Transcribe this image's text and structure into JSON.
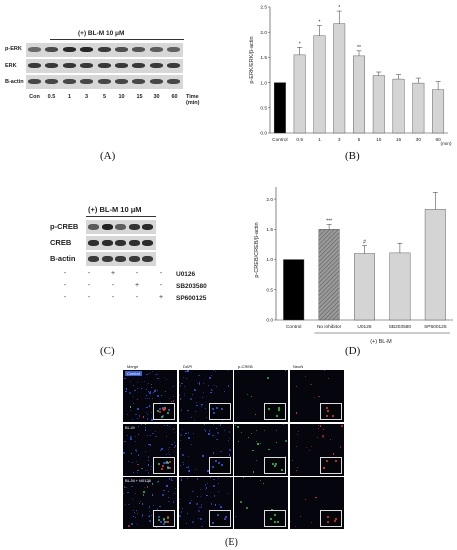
{
  "panels": {
    "A": "(A)",
    "B": "(B)",
    "C": "(C)",
    "D": "(D)",
    "E": "(E)"
  },
  "blot_a": {
    "treatment": "(+) BL-M 10 μM",
    "rows": [
      "p-ERK",
      "ERK",
      "B-actin"
    ],
    "lanes": [
      "Con",
      "0.5",
      "1",
      "3",
      "5",
      "10",
      "15",
      "30",
      "60"
    ],
    "time_label": "Time (min)"
  },
  "blot_c": {
    "treatment": "(+) BL-M 10 μM",
    "rows": [
      "p-CREB",
      "CREB",
      "B-actin"
    ],
    "treatments": [
      {
        "name": "U0126",
        "signs": [
          "-",
          "-",
          "+",
          "-",
          "-"
        ]
      },
      {
        "name": "SB203580",
        "signs": [
          "-",
          "-",
          "-",
          "+",
          "-"
        ]
      },
      {
        "name": "SP600125",
        "signs": [
          "-",
          "-",
          "-",
          "-",
          "+"
        ]
      }
    ]
  },
  "chart_data": [
    {
      "type": "bar",
      "categories": [
        "Control",
        "0.5",
        "1",
        "3",
        "5",
        "10",
        "15",
        "30",
        "60"
      ],
      "values": [
        1.0,
        1.55,
        1.93,
        2.17,
        1.53,
        1.14,
        1.07,
        0.99,
        0.86
      ],
      "errors": [
        0.0,
        0.15,
        0.2,
        0.25,
        0.1,
        0.07,
        0.09,
        0.1,
        0.16
      ],
      "significance": [
        "",
        "*",
        "*",
        "*",
        "**",
        "",
        "",
        "",
        ""
      ],
      "colors": [
        "#000000",
        "#d4d4d4",
        "#d4d4d4",
        "#d4d4d4",
        "#d4d4d4",
        "#d4d4d4",
        "#d4d4d4",
        "#d4d4d4",
        "#d4d4d4"
      ],
      "ylabel": "p-ERK/ERK/β-actin",
      "xunit": "(min)",
      "ylim": [
        0,
        2.5
      ],
      "yticks": [
        "0.0",
        "0.5",
        "1.0",
        "1.5",
        "2.0",
        "2.5"
      ]
    },
    {
      "type": "bar",
      "categories": [
        "Control",
        "No inhibitor",
        "U0126",
        "SB203580",
        "SP600125"
      ],
      "values": [
        1.0,
        1.5,
        1.1,
        1.11,
        1.83
      ],
      "errors": [
        0.0,
        0.08,
        0.13,
        0.16,
        0.28
      ],
      "significance": [
        "",
        "***",
        "#",
        "",
        ""
      ],
      "colors": [
        "#000000",
        "#8a8a8a",
        "#d4d4d4",
        "#d4d4d4",
        "#d4d4d4"
      ],
      "ylabel": "p-CREB/CREB/β-actin",
      "bracket_label": "(+) BL-M",
      "ylim": [
        0,
        2.2
      ],
      "yticks": [
        "0.0",
        "0.5",
        "1.0",
        "1.5",
        "2.0"
      ]
    }
  ],
  "microscopy": {
    "columns": [
      "Merge",
      "DAPI",
      "p-CREB",
      "NeuN"
    ],
    "rows": [
      "Control",
      "BL-M",
      "BL-M + U0126"
    ],
    "colors": {
      "dapi": "#3a5cff",
      "pcreb": "#36d34a",
      "neun": "#ff3030"
    }
  }
}
